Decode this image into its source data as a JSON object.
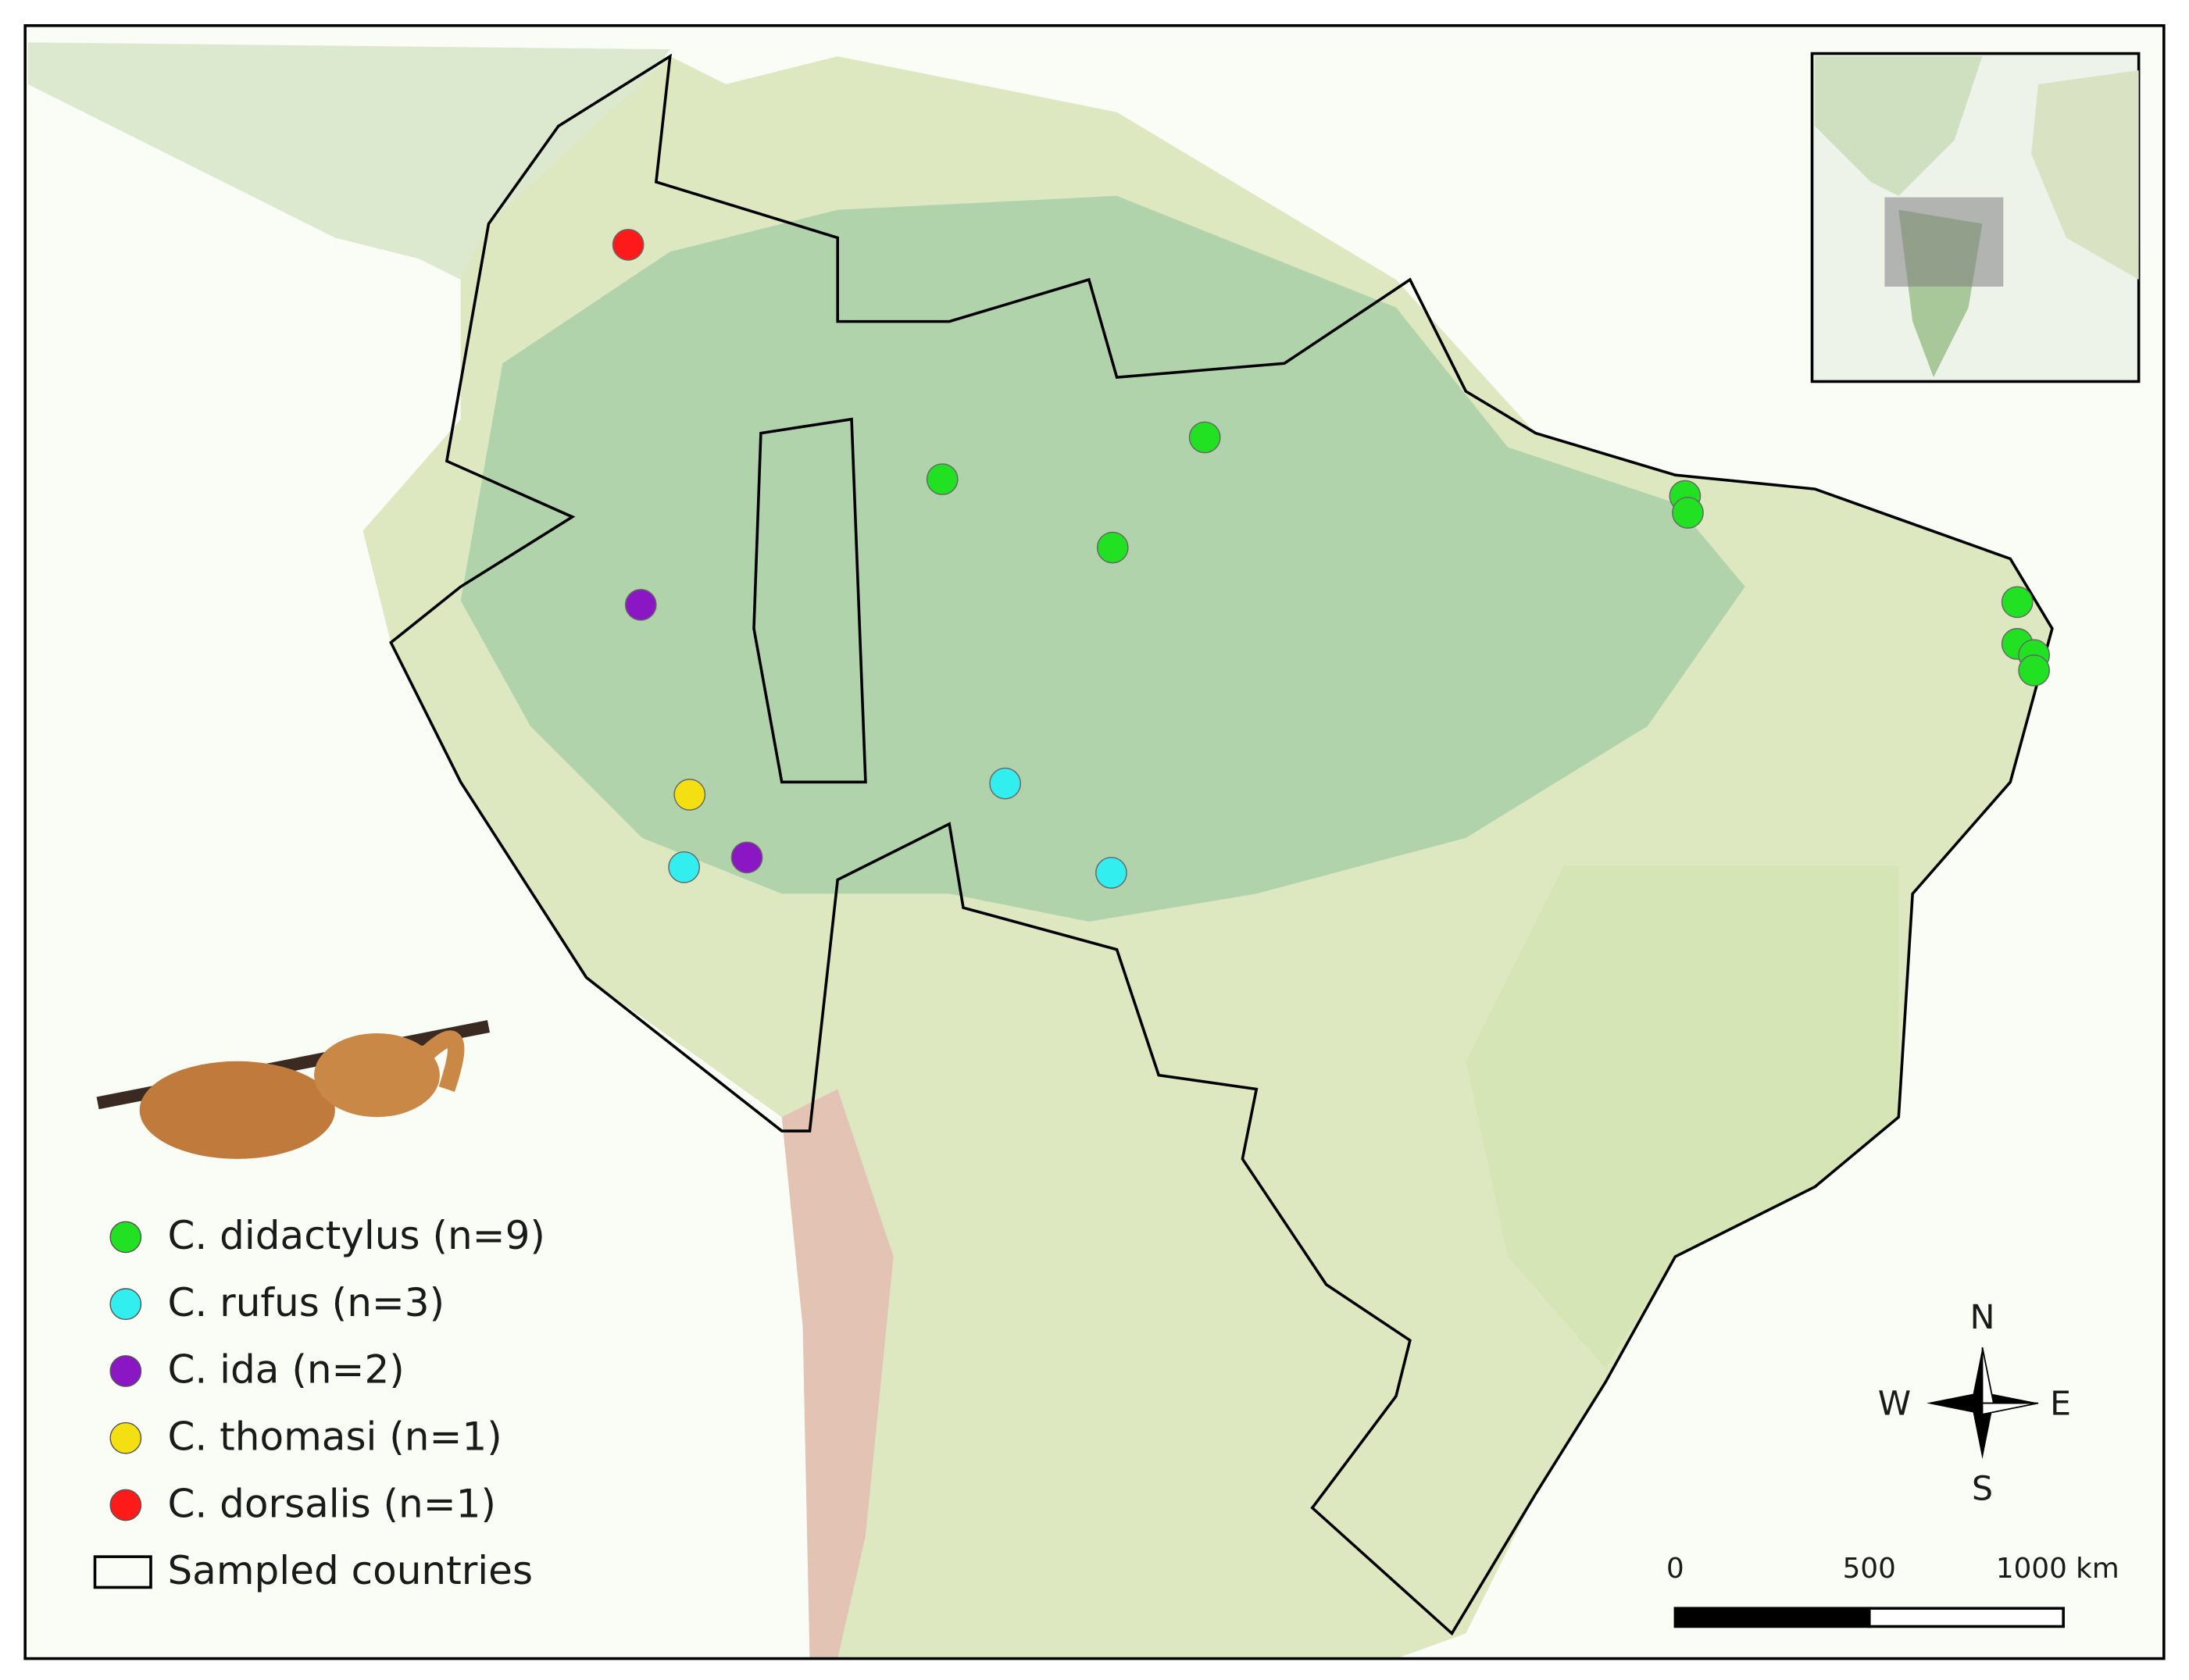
{
  "legend": {
    "items": [
      {
        "label": "C. didactylus (n=9)",
        "color": "#22e022"
      },
      {
        "label": "C. rufus (n=3)",
        "color": "#33eeee"
      },
      {
        "label": "C. ida (n=2)",
        "color": "#8a16c4"
      },
      {
        "label": "C. thomasi (n=1)",
        "color": "#f4e012"
      },
      {
        "label": "C. dorsalis (n=1)",
        "color": "#ff1a1a"
      }
    ],
    "border_label": "Sampled countries"
  },
  "scale_bar": {
    "labels": [
      "0",
      "500",
      "1000 km"
    ]
  },
  "compass": {
    "north": "N",
    "south": "S",
    "west": "W",
    "east": "E"
  }
}
